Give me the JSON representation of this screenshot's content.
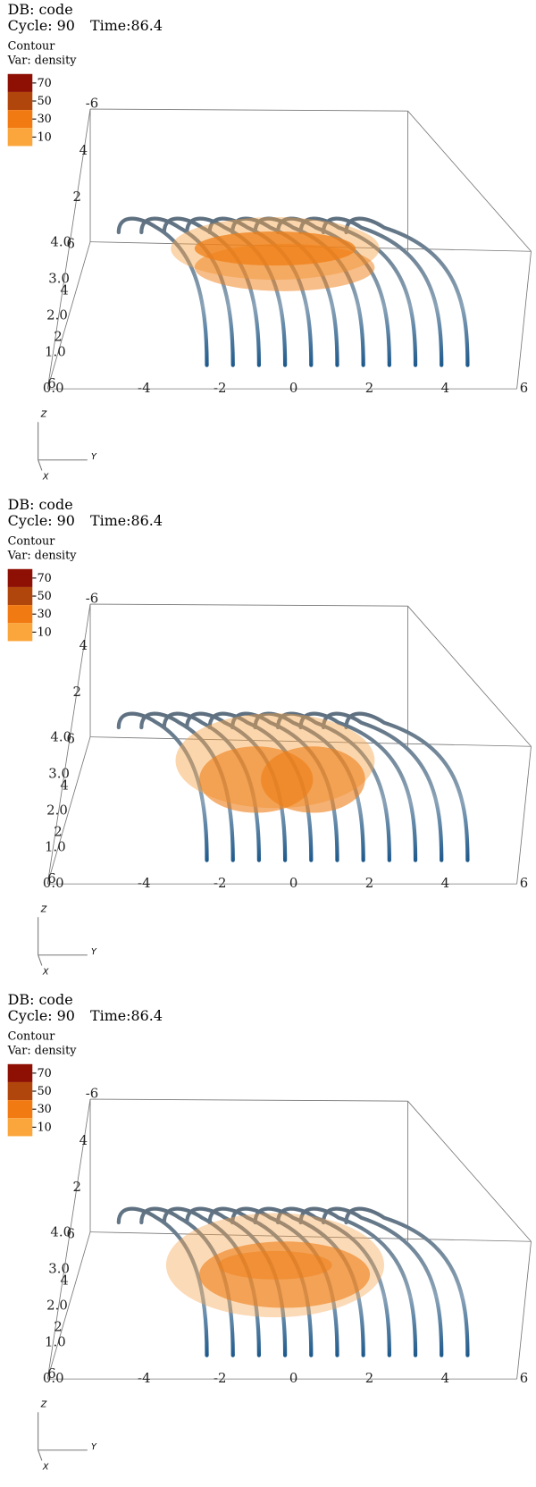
{
  "panels": [
    {
      "header": {
        "db": "DB: code",
        "cycle": "Cycle: 90",
        "time": "Time:86.4"
      },
      "legend": {
        "title": "Contour",
        "variable": "Var: density",
        "levels": [
          {
            "label": "70",
            "color": "#8e1005"
          },
          {
            "label": "50",
            "color": "#b1460c"
          },
          {
            "label": "30",
            "color": "#f27a12"
          },
          {
            "label": "10",
            "color": "#fba63c"
          }
        ]
      },
      "axes": {
        "x_ticks": [
          "-6",
          "4",
          "2",
          "6",
          "4",
          "2",
          "6"
        ],
        "z_ticks": [
          "0.0",
          "1.0",
          "2.0",
          "3.0",
          "4.0"
        ],
        "y_ticks": [
          "-4",
          "-2",
          "0",
          "2",
          "4",
          "6"
        ]
      },
      "triad": {
        "z": "Z",
        "y": "Y",
        "x": "X"
      }
    },
    {
      "header": {
        "db": "DB: code",
        "cycle": "Cycle: 90",
        "time": "Time:86.4"
      },
      "legend": {
        "title": "Contour",
        "variable": "Var: density",
        "levels": [
          {
            "label": "70",
            "color": "#8e1005"
          },
          {
            "label": "50",
            "color": "#b1460c"
          },
          {
            "label": "30",
            "color": "#f27a12"
          },
          {
            "label": "10",
            "color": "#fba63c"
          }
        ]
      },
      "axes": {
        "x_ticks": [
          "-6",
          "4",
          "2",
          "6",
          "4",
          "2",
          "6"
        ],
        "z_ticks": [
          "0.0",
          "1.0",
          "2.0",
          "3.0",
          "4.0"
        ],
        "y_ticks": [
          "-4",
          "-2",
          "0",
          "2",
          "4",
          "6"
        ]
      },
      "triad": {
        "z": "Z",
        "y": "Y",
        "x": "X"
      }
    },
    {
      "header": {
        "db": "DB: code",
        "cycle": "Cycle: 90",
        "time": "Time:86.4"
      },
      "legend": {
        "title": "Contour",
        "variable": "Var: density",
        "levels": [
          {
            "label": "70",
            "color": "#8e1005"
          },
          {
            "label": "50",
            "color": "#b1460c"
          },
          {
            "label": "30",
            "color": "#f27a12"
          },
          {
            "label": "10",
            "color": "#fba63c"
          }
        ]
      },
      "axes": {
        "x_ticks": [
          "-6",
          "4",
          "2",
          "6",
          "4",
          "2",
          "6"
        ],
        "z_ticks": [
          "0.0",
          "1.0",
          "2.0",
          "3.0",
          "4.0"
        ],
        "y_ticks": [
          "-4",
          "-2",
          "0",
          "2",
          "4",
          "6"
        ]
      },
      "triad": {
        "z": "Z",
        "y": "Y",
        "x": "X"
      }
    }
  ]
}
